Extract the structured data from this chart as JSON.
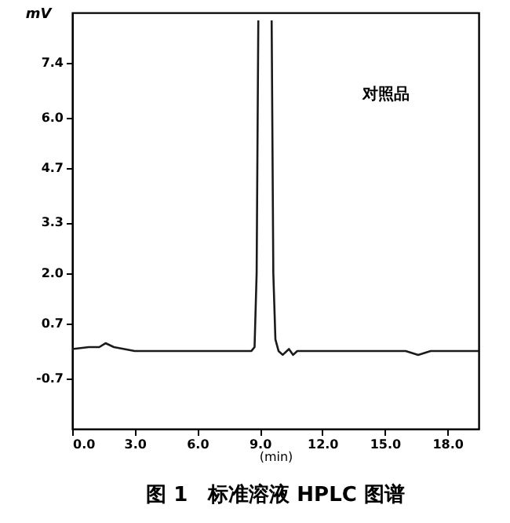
{
  "chart_data": {
    "type": "line",
    "title": "图 1　标准溶液 HPLC 图谱",
    "xlabel": "(min)",
    "ylabel": "mV",
    "annotations": [
      "对照品"
    ],
    "x": [
      0,
      0.8,
      1.3,
      1.6,
      2.0,
      3.0,
      5.0,
      7.0,
      8.6,
      8.75,
      8.85,
      8.93,
      9.25,
      9.57,
      9.65,
      9.75,
      9.9,
      10.1,
      10.4,
      10.6,
      10.8,
      12.0,
      14.0,
      16.0,
      16.6,
      17.2,
      19.5
    ],
    "series": [
      {
        "color": "#1a1a1a",
        "values": [
          0.05,
          0.1,
          0.1,
          0.2,
          0.1,
          0.0,
          0.0,
          0.0,
          0.0,
          0.1,
          2.0,
          8.5,
          null,
          8.5,
          2.0,
          0.3,
          0.0,
          -0.1,
          0.05,
          -0.1,
          0.0,
          0.0,
          0.0,
          0.0,
          -0.1,
          0.0,
          0.0
        ]
      }
    ],
    "xlim": [
      0,
      19.5
    ],
    "xticks": [
      {
        "value": 0,
        "label": "0.0"
      },
      {
        "value": 3,
        "label": "3.0"
      },
      {
        "value": 6,
        "label": "6.0"
      },
      {
        "value": 9,
        "label": "9.0"
      },
      {
        "value": 12,
        "label": "12.0"
      },
      {
        "value": 15,
        "label": "15.0"
      },
      {
        "value": 18,
        "label": "18.0"
      }
    ],
    "ylim": [
      -2.0,
      8.7
    ],
    "yticks": [
      {
        "value": -0.7,
        "label": "-0.7"
      },
      0.7,
      {
        "value": 2,
        "label": "2.0"
      },
      3.3,
      4.7,
      {
        "value": 6,
        "label": "6.0"
      },
      7.4
    ],
    "grid": false,
    "marker": "none",
    "line_style": "solid"
  }
}
